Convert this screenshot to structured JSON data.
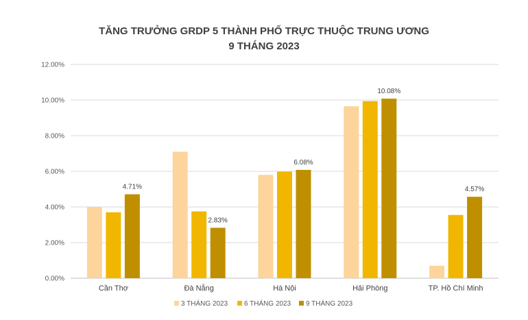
{
  "chart_data": {
    "type": "bar",
    "title": "TĂNG TRƯỞNG GRDP 5 THÀNH PHỐ TRỰC THUỘC TRUNG ƯƠNG",
    "subtitle": "9 THÁNG 2023",
    "xlabel": "",
    "ylabel": "",
    "ylim": [
      0,
      12
    ],
    "yticks": [
      "0.00%",
      "2.00%",
      "4.00%",
      "6.00%",
      "8.00%",
      "10.00%",
      "12.00%"
    ],
    "grid": true,
    "legend_position": "bottom",
    "categories": [
      "Cần Thơ",
      "Đà Nẵng",
      "Hà Nội",
      "Hải Phòng",
      "TP. Hồ Chí Minh"
    ],
    "series": [
      {
        "name": "3 THÁNG 2023",
        "color": "#FDD49C",
        "values": [
          4.0,
          7.1,
          5.8,
          9.65,
          0.7
        ],
        "labels": [
          "",
          "",
          "",
          "",
          ""
        ]
      },
      {
        "name": "6 THÁNG 2023",
        "color": "#F1B700",
        "values": [
          3.7,
          3.75,
          5.98,
          9.94,
          3.55
        ],
        "labels": [
          "",
          "",
          "",
          "",
          ""
        ]
      },
      {
        "name": "9 THÁNG 2023",
        "color": "#BF8F00",
        "values": [
          4.71,
          2.83,
          6.08,
          10.08,
          4.57
        ],
        "labels": [
          "4.71%",
          "2.83%",
          "6.08%",
          "10.08%",
          "4.57%"
        ]
      }
    ]
  }
}
